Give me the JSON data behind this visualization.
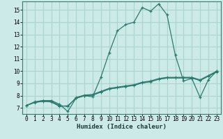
{
  "xlabel": "Humidex (Indice chaleur)",
  "bg_color": "#cceae8",
  "grid_color": "#aad4d0",
  "line_color": "#2d7a6e",
  "xlim": [
    -0.5,
    23.5
  ],
  "ylim": [
    6.5,
    15.7
  ],
  "xticks": [
    0,
    1,
    2,
    3,
    4,
    5,
    6,
    7,
    8,
    9,
    10,
    11,
    12,
    13,
    14,
    15,
    16,
    17,
    18,
    19,
    20,
    21,
    22,
    23
  ],
  "yticks": [
    7,
    8,
    9,
    10,
    11,
    12,
    13,
    14,
    15
  ],
  "lines": [
    {
      "x": [
        0,
        1,
        2,
        3,
        4,
        5,
        6,
        7,
        8,
        9,
        10,
        11,
        12,
        13,
        14,
        15,
        16,
        17,
        18,
        19,
        20,
        21,
        22,
        23
      ],
      "y": [
        7.2,
        7.5,
        7.6,
        7.6,
        7.3,
        6.7,
        7.8,
        8.0,
        7.9,
        9.5,
        11.5,
        13.3,
        13.8,
        14.0,
        15.2,
        14.9,
        15.5,
        14.6,
        11.3,
        9.2,
        9.4,
        7.85,
        9.3,
        10.0
      ]
    },
    {
      "x": [
        0,
        1,
        2,
        3,
        4,
        5,
        6,
        7,
        8,
        9,
        10,
        11,
        12,
        13,
        14,
        15,
        16,
        17,
        18,
        19,
        20,
        21,
        22,
        23
      ],
      "y": [
        7.2,
        7.45,
        7.6,
        7.55,
        7.2,
        7.1,
        7.85,
        8.05,
        8.1,
        8.35,
        8.6,
        8.7,
        8.8,
        8.9,
        9.1,
        9.2,
        9.4,
        9.5,
        9.5,
        9.5,
        9.5,
        9.3,
        9.65,
        10.0
      ]
    },
    {
      "x": [
        0,
        1,
        2,
        3,
        4,
        5,
        6,
        7,
        8,
        9,
        10,
        11,
        12,
        13,
        14,
        15,
        16,
        17,
        18,
        19,
        20,
        21,
        22,
        23
      ],
      "y": [
        7.2,
        7.45,
        7.55,
        7.5,
        7.15,
        7.15,
        7.8,
        8.0,
        8.05,
        8.3,
        8.55,
        8.65,
        8.75,
        8.85,
        9.05,
        9.15,
        9.35,
        9.45,
        9.45,
        9.45,
        9.45,
        9.25,
        9.6,
        9.95
      ]
    },
    {
      "x": [
        0,
        1,
        2,
        3,
        4,
        5,
        6,
        7,
        8,
        9,
        10,
        11,
        12,
        13,
        14,
        15,
        16,
        17,
        18,
        19,
        20,
        21,
        22,
        23
      ],
      "y": [
        7.2,
        7.43,
        7.53,
        7.48,
        7.12,
        7.18,
        7.78,
        7.98,
        8.03,
        8.28,
        8.53,
        8.63,
        8.73,
        8.83,
        9.03,
        9.13,
        9.33,
        9.43,
        9.43,
        9.43,
        9.43,
        9.23,
        9.58,
        9.93
      ]
    }
  ]
}
